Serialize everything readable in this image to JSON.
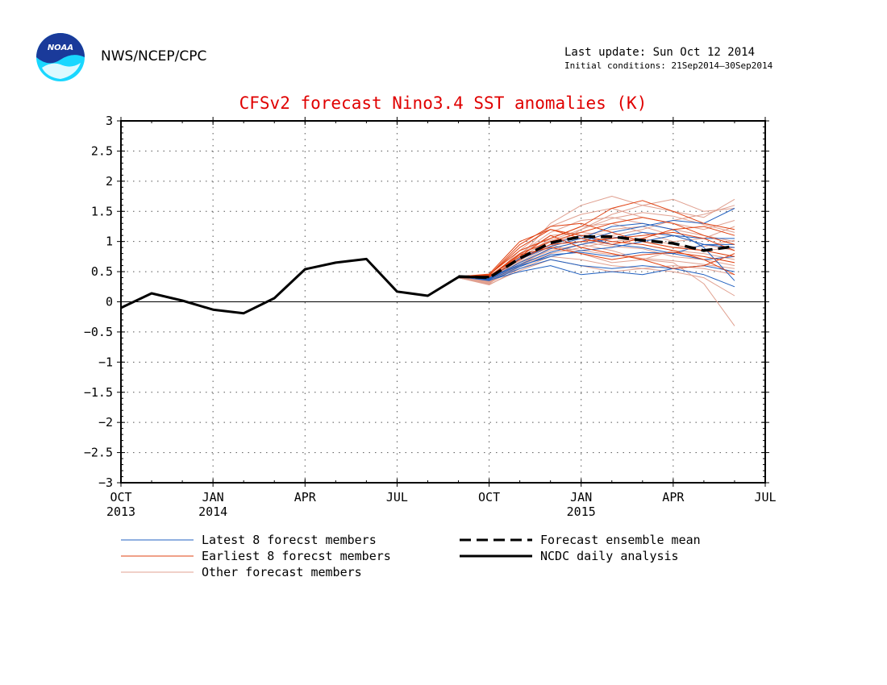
{
  "header": {
    "logo_text": "NOAA",
    "agency": "NWS/NCEP/CPC",
    "last_update": "Last update: Sun Oct 12 2014",
    "initial_conditions": "Initial conditions: 21Sep2014–30Sep2014"
  },
  "colors": {
    "title": "#e00000",
    "analysis": "#000000",
    "latest": "#2060c0",
    "earliest": "#e04010",
    "other": "#e0a090",
    "logo_dark": "#1a3a9a",
    "logo_light": "#19d7ff"
  },
  "chart_data": {
    "type": "line",
    "title": "CFSv2 forecast Nino3.4 SST anomalies (K)",
    "xlabel": "",
    "ylabel": "",
    "ylim": [
      -3,
      3
    ],
    "yticks": [
      "3",
      "2.5",
      "2",
      "1.5",
      "1",
      "0.5",
      "0",
      "−0.5",
      "−1",
      "−1.5",
      "−2",
      "−2.5",
      "−3"
    ],
    "xticks": [
      {
        "label": "OCT",
        "sub": "2013"
      },
      {
        "label": "JAN",
        "sub": "2014"
      },
      {
        "label": "APR",
        "sub": ""
      },
      {
        "label": "JUL",
        "sub": ""
      },
      {
        "label": "OCT",
        "sub": ""
      },
      {
        "label": "JAN",
        "sub": "2015"
      },
      {
        "label": "APR",
        "sub": ""
      },
      {
        "label": "JUL",
        "sub": ""
      }
    ],
    "x_range": [
      "2013-10",
      "2015-07"
    ],
    "grid": true,
    "analysis": {
      "name": "NCDC daily analysis",
      "x": [
        "2013-10",
        "2013-11",
        "2013-12",
        "2014-01",
        "2014-02",
        "2014-03",
        "2014-04",
        "2014-05",
        "2014-06",
        "2014-07",
        "2014-08",
        "2014-09",
        "2014-10"
      ],
      "values": [
        -0.1,
        0.14,
        0.02,
        -0.13,
        -0.19,
        0.06,
        0.54,
        0.65,
        0.71,
        0.17,
        0.1,
        0.41,
        0.41
      ]
    },
    "ensemble_mean": {
      "name": "Forecast ensemble mean",
      "x": [
        "2014-09",
        "2014-10",
        "2014-11",
        "2014-12",
        "2015-01",
        "2015-02",
        "2015-03",
        "2015-04",
        "2015-05",
        "2015-06"
      ],
      "values": [
        0.42,
        0.4,
        0.72,
        0.98,
        1.08,
        1.08,
        1.02,
        0.97,
        0.85,
        0.92
      ]
    },
    "member_x": [
      "2014-09",
      "2014-10",
      "2014-11",
      "2014-12",
      "2015-01",
      "2015-02",
      "2015-03",
      "2015-04",
      "2015-05",
      "2015-06"
    ],
    "latest_members": {
      "name": "Latest 8 forecst members",
      "values": [
        [
          0.42,
          0.38,
          0.62,
          0.82,
          0.95,
          1.05,
          1.15,
          1.1,
          0.95,
          0.9
        ],
        [
          0.42,
          0.35,
          0.55,
          0.7,
          0.6,
          0.55,
          0.6,
          0.55,
          0.45,
          0.25
        ],
        [
          0.42,
          0.4,
          0.7,
          0.92,
          1.05,
          1.25,
          1.3,
          1.2,
          0.9,
          0.35
        ],
        [
          0.42,
          0.36,
          0.5,
          0.6,
          0.45,
          0.5,
          0.45,
          0.55,
          0.6,
          0.5
        ],
        [
          0.42,
          0.38,
          0.65,
          0.88,
          1.0,
          1.15,
          1.25,
          1.35,
          1.3,
          1.55
        ],
        [
          0.42,
          0.37,
          0.58,
          0.78,
          0.82,
          0.75,
          0.82,
          0.8,
          0.95,
          0.95
        ],
        [
          0.42,
          0.39,
          0.72,
          0.95,
          1.1,
          0.95,
          0.9,
          0.8,
          0.7,
          0.75
        ],
        [
          0.42,
          0.4,
          0.6,
          0.75,
          0.85,
          0.9,
          1.0,
          1.1,
          1.05,
          1.05
        ]
      ]
    },
    "earliest_members": {
      "name": "Earliest 8 forecst members",
      "values": [
        [
          0.42,
          0.45,
          0.85,
          1.05,
          1.25,
          1.55,
          1.68,
          1.5,
          1.3,
          1.2
        ],
        [
          0.42,
          0.44,
          0.9,
          1.2,
          1.1,
          1.0,
          0.95,
          0.85,
          0.7,
          0.45
        ],
        [
          0.42,
          0.42,
          0.8,
          1.0,
          1.15,
          1.3,
          1.4,
          1.3,
          1.1,
          0.95
        ],
        [
          0.42,
          0.43,
          0.75,
          1.1,
          0.9,
          0.8,
          0.7,
          0.55,
          0.6,
          0.8
        ],
        [
          0.42,
          0.44,
          0.95,
          1.25,
          1.3,
          1.15,
          1.0,
          0.9,
          0.85,
          0.75
        ],
        [
          0.42,
          0.41,
          0.7,
          0.95,
          1.0,
          1.05,
          1.1,
          1.15,
          1.05,
          0.85
        ],
        [
          0.42,
          0.46,
          1.0,
          1.2,
          1.05,
          0.95,
          1.05,
          1.2,
          1.25,
          1.1
        ],
        [
          0.42,
          0.42,
          0.78,
          0.9,
          0.8,
          0.7,
          0.78,
          0.82,
          0.75,
          0.65
        ]
      ]
    },
    "other_members": {
      "name": "Other forecast members",
      "values": [
        [
          0.4,
          0.3,
          0.75,
          1.3,
          1.6,
          1.75,
          1.6,
          1.5,
          1.4,
          1.7
        ],
        [
          0.4,
          0.32,
          0.6,
          0.9,
          1.2,
          1.45,
          1.6,
          1.7,
          1.5,
          1.55
        ],
        [
          0.4,
          0.28,
          0.55,
          0.75,
          0.7,
          0.6,
          0.55,
          0.5,
          0.4,
          0.1
        ],
        [
          0.4,
          0.33,
          0.65,
          0.85,
          0.95,
          0.85,
          0.7,
          0.65,
          0.3,
          -0.4
        ],
        [
          0.4,
          0.35,
          0.8,
          1.15,
          1.35,
          1.4,
          1.3,
          1.2,
          1.1,
          1.0
        ],
        [
          0.4,
          0.3,
          0.68,
          1.0,
          1.1,
          1.2,
          1.25,
          1.1,
          0.95,
          0.85
        ],
        [
          0.4,
          0.34,
          0.7,
          0.95,
          0.8,
          0.65,
          0.7,
          0.85,
          0.8,
          0.7
        ],
        [
          0.4,
          0.31,
          0.58,
          0.8,
          0.9,
          1.0,
          1.05,
          0.95,
          0.85,
          0.9
        ],
        [
          0.4,
          0.36,
          0.85,
          1.25,
          1.45,
          1.55,
          1.4,
          1.3,
          1.2,
          1.35
        ],
        [
          0.4,
          0.29,
          0.52,
          0.7,
          0.6,
          0.5,
          0.55,
          0.6,
          0.55,
          0.45
        ],
        [
          0.4,
          0.33,
          0.72,
          1.05,
          1.25,
          1.3,
          1.15,
          1.0,
          1.05,
          1.25
        ],
        [
          0.4,
          0.32,
          0.62,
          0.88,
          1.0,
          0.92,
          0.88,
          0.75,
          0.7,
          0.6
        ],
        [
          0.4,
          0.35,
          0.78,
          1.1,
          1.15,
          1.1,
          1.2,
          1.35,
          1.45,
          1.6
        ],
        [
          0.4,
          0.3,
          0.66,
          0.92,
          0.85,
          0.78,
          0.72,
          0.68,
          0.62,
          0.55
        ],
        [
          0.4,
          0.34,
          0.74,
          1.02,
          1.2,
          1.38,
          1.48,
          1.42,
          1.28,
          1.15
        ],
        [
          0.4,
          0.31,
          0.6,
          0.82,
          0.95,
          1.08,
          1.0,
          0.9,
          0.92,
          1.02
        ]
      ]
    },
    "legend": [
      {
        "label": "Latest 8 forecst members",
        "style": "latest"
      },
      {
        "label": "Earliest 8 forecst members",
        "style": "earliest"
      },
      {
        "label": "Other forecast members",
        "style": "other"
      },
      {
        "label": "Forecast ensemble mean",
        "style": "mean"
      },
      {
        "label": "NCDC daily analysis",
        "style": "analysis"
      }
    ]
  }
}
